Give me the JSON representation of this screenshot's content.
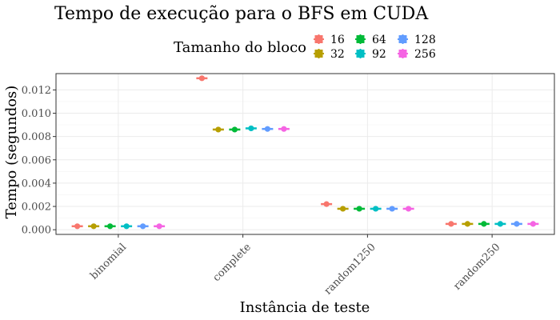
{
  "chart_data": {
    "type": "scatter",
    "title": "Tempo de execução para o BFS em CUDA",
    "xlabel": "Instância de teste",
    "ylabel": "Tempo (segundos)",
    "categories": [
      "binomial",
      "complete",
      "random1250",
      "random250"
    ],
    "ylim": [
      -0.0004,
      0.0134
    ],
    "yticks": [
      0.0,
      0.002,
      0.004,
      0.006,
      0.008,
      0.01,
      0.012
    ],
    "ytick_labels": [
      "0.000",
      "0.002",
      "0.004",
      "0.006",
      "0.008",
      "0.010",
      "0.012"
    ],
    "grid": true,
    "legend": {
      "title": "Tamanho do bloco",
      "placement": "top"
    },
    "series": [
      {
        "name": "16",
        "color": "#F8766D",
        "values": [
          0.0003,
          0.013,
          0.0022,
          0.0005
        ]
      },
      {
        "name": "32",
        "color": "#B79F00",
        "values": [
          0.0003,
          0.0086,
          0.0018,
          0.0005
        ]
      },
      {
        "name": "64",
        "color": "#00BA38",
        "values": [
          0.0003,
          0.0086,
          0.0018,
          0.0005
        ]
      },
      {
        "name": "92",
        "color": "#00BFC4",
        "values": [
          0.0003,
          0.0087,
          0.0018,
          0.0005
        ]
      },
      {
        "name": "128",
        "color": "#619CFF",
        "values": [
          0.0003,
          0.00865,
          0.0018,
          0.0005
        ]
      },
      {
        "name": "256",
        "color": "#F564E3",
        "values": [
          0.0003,
          0.00865,
          0.0018,
          0.0005
        ]
      }
    ]
  }
}
